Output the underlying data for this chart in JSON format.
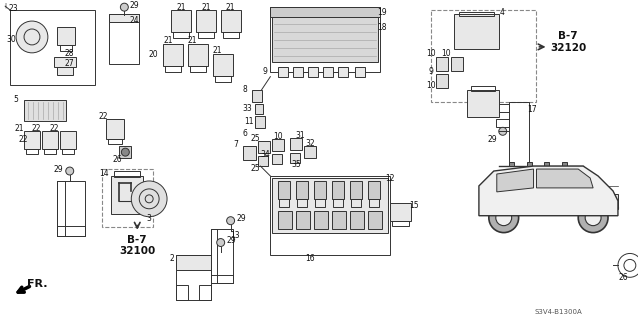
{
  "bg_color": "#ffffff",
  "lc": "#333333",
  "ref_b7_top": "B-7\n32120",
  "ref_b7_bot": "B-7\n32100",
  "code": "S3V4-B1300A",
  "fr_label": "FR."
}
